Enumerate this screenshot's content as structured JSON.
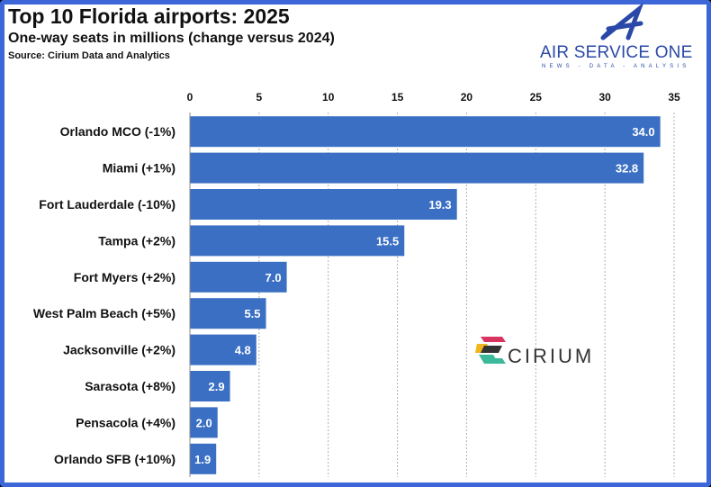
{
  "header": {
    "title": "Top 10 Florida airports: 2025",
    "subtitle": "One-way seats in millions (change versus 2024)",
    "source": "Source: Cirium Data and Analytics"
  },
  "logos": {
    "air_service_one": "AIR SERVICE ONE",
    "air_service_one_tagline": "NEWS - DATA - ANALYSIS",
    "cirium": "CIRIUM"
  },
  "colors": {
    "bar": "#3a6fc4",
    "frame": "#3d66d9",
    "grid": "#b0b0b0"
  },
  "chart_data": {
    "type": "bar",
    "orientation": "horizontal",
    "title": "Top 10 Florida airports: 2025",
    "subtitle": "One-way seats in millions (change versus 2024)",
    "categories": [
      "Orlando MCO (-1%)",
      "Miami (+1%)",
      "Fort Lauderdale (-10%)",
      "Tampa (+2%)",
      "Fort Myers (+2%)",
      "West Palm Beach (+5%)",
      "Jacksonville (+2%)",
      "Sarasota (+8%)",
      "Pensacola (+4%)",
      "Orlando SFB (+10%)"
    ],
    "values": [
      34.0,
      32.8,
      19.3,
      15.5,
      7.0,
      5.5,
      4.8,
      2.9,
      2.0,
      1.9
    ],
    "data_labels": [
      "34.0",
      "32.8",
      "19.3",
      "15.5",
      "7.0",
      "5.5",
      "4.8",
      "2.9",
      "2.0",
      "1.9"
    ],
    "xlim": [
      0,
      35
    ],
    "xticks": [
      "0",
      "5",
      "10",
      "15",
      "20",
      "25",
      "30",
      "35"
    ],
    "x_axis_position": "top",
    "grid": true
  }
}
